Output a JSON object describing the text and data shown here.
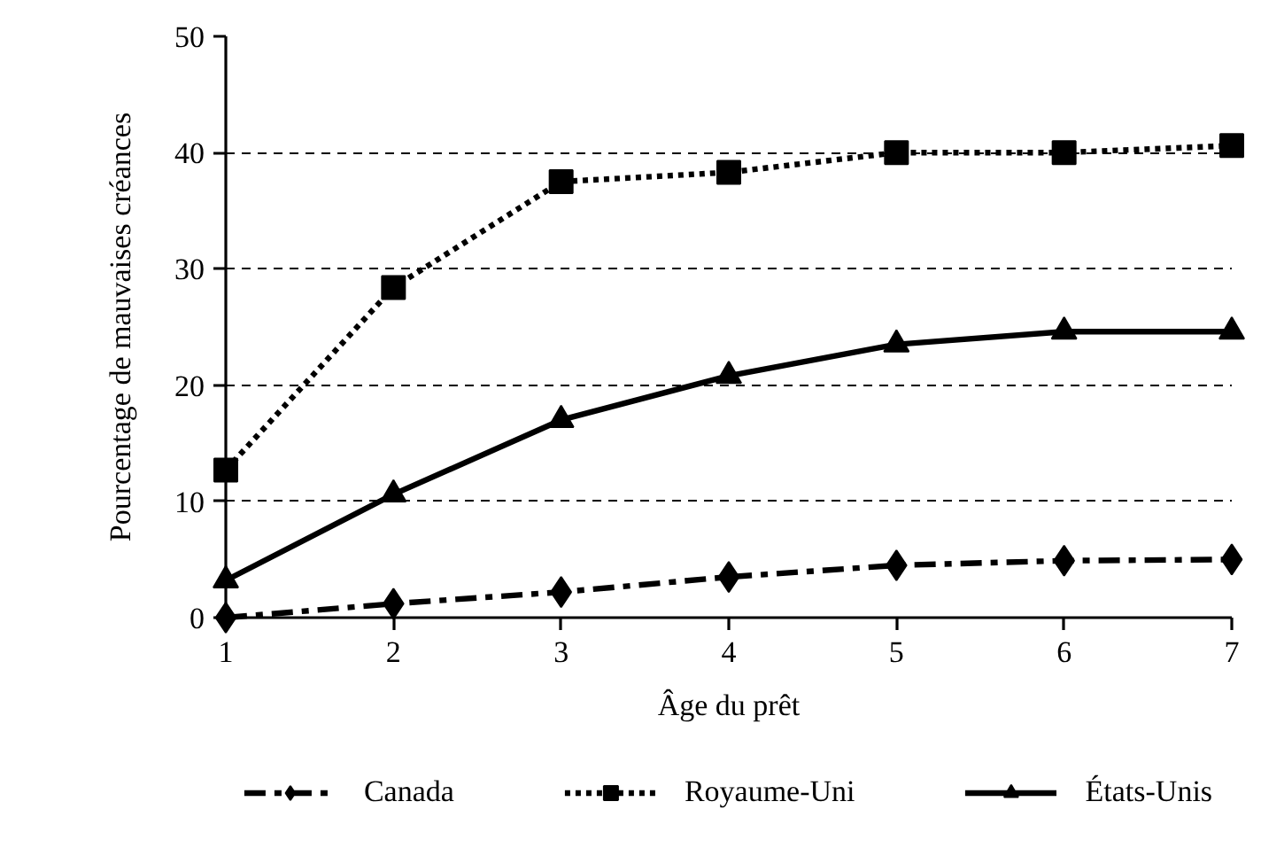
{
  "chart_data": {
    "type": "line",
    "xlabel": "Âge du prêt",
    "ylabel": "Pourcentage de mauvaises créances",
    "x": [
      1,
      2,
      3,
      4,
      5,
      6,
      7
    ],
    "xlim": [
      1,
      7
    ],
    "xticks": [
      1,
      2,
      3,
      4,
      5,
      6,
      7
    ],
    "ylim": [
      0,
      50
    ],
    "yticks": [
      0,
      10,
      20,
      30,
      40,
      50
    ],
    "grid": "y",
    "legend": "bottom",
    "series": [
      {
        "name": "Canada",
        "color": "#000000",
        "marker": "diamond",
        "line_style": "dashdot",
        "values": [
          0,
          1.2,
          2.2,
          3.5,
          4.5,
          4.9,
          5.0
        ]
      },
      {
        "name": "Royaume-Uni",
        "color": "#000000",
        "marker": "square",
        "line_style": "dotted",
        "values": [
          12.7,
          28.4,
          37.5,
          38.3,
          40.0,
          40.0,
          40.6
        ]
      },
      {
        "name": "États-Unis",
        "color": "#000000",
        "marker": "triangle",
        "line_style": "solid",
        "values": [
          3.2,
          10.6,
          17.0,
          20.8,
          23.5,
          24.6,
          24.6
        ]
      }
    ]
  }
}
